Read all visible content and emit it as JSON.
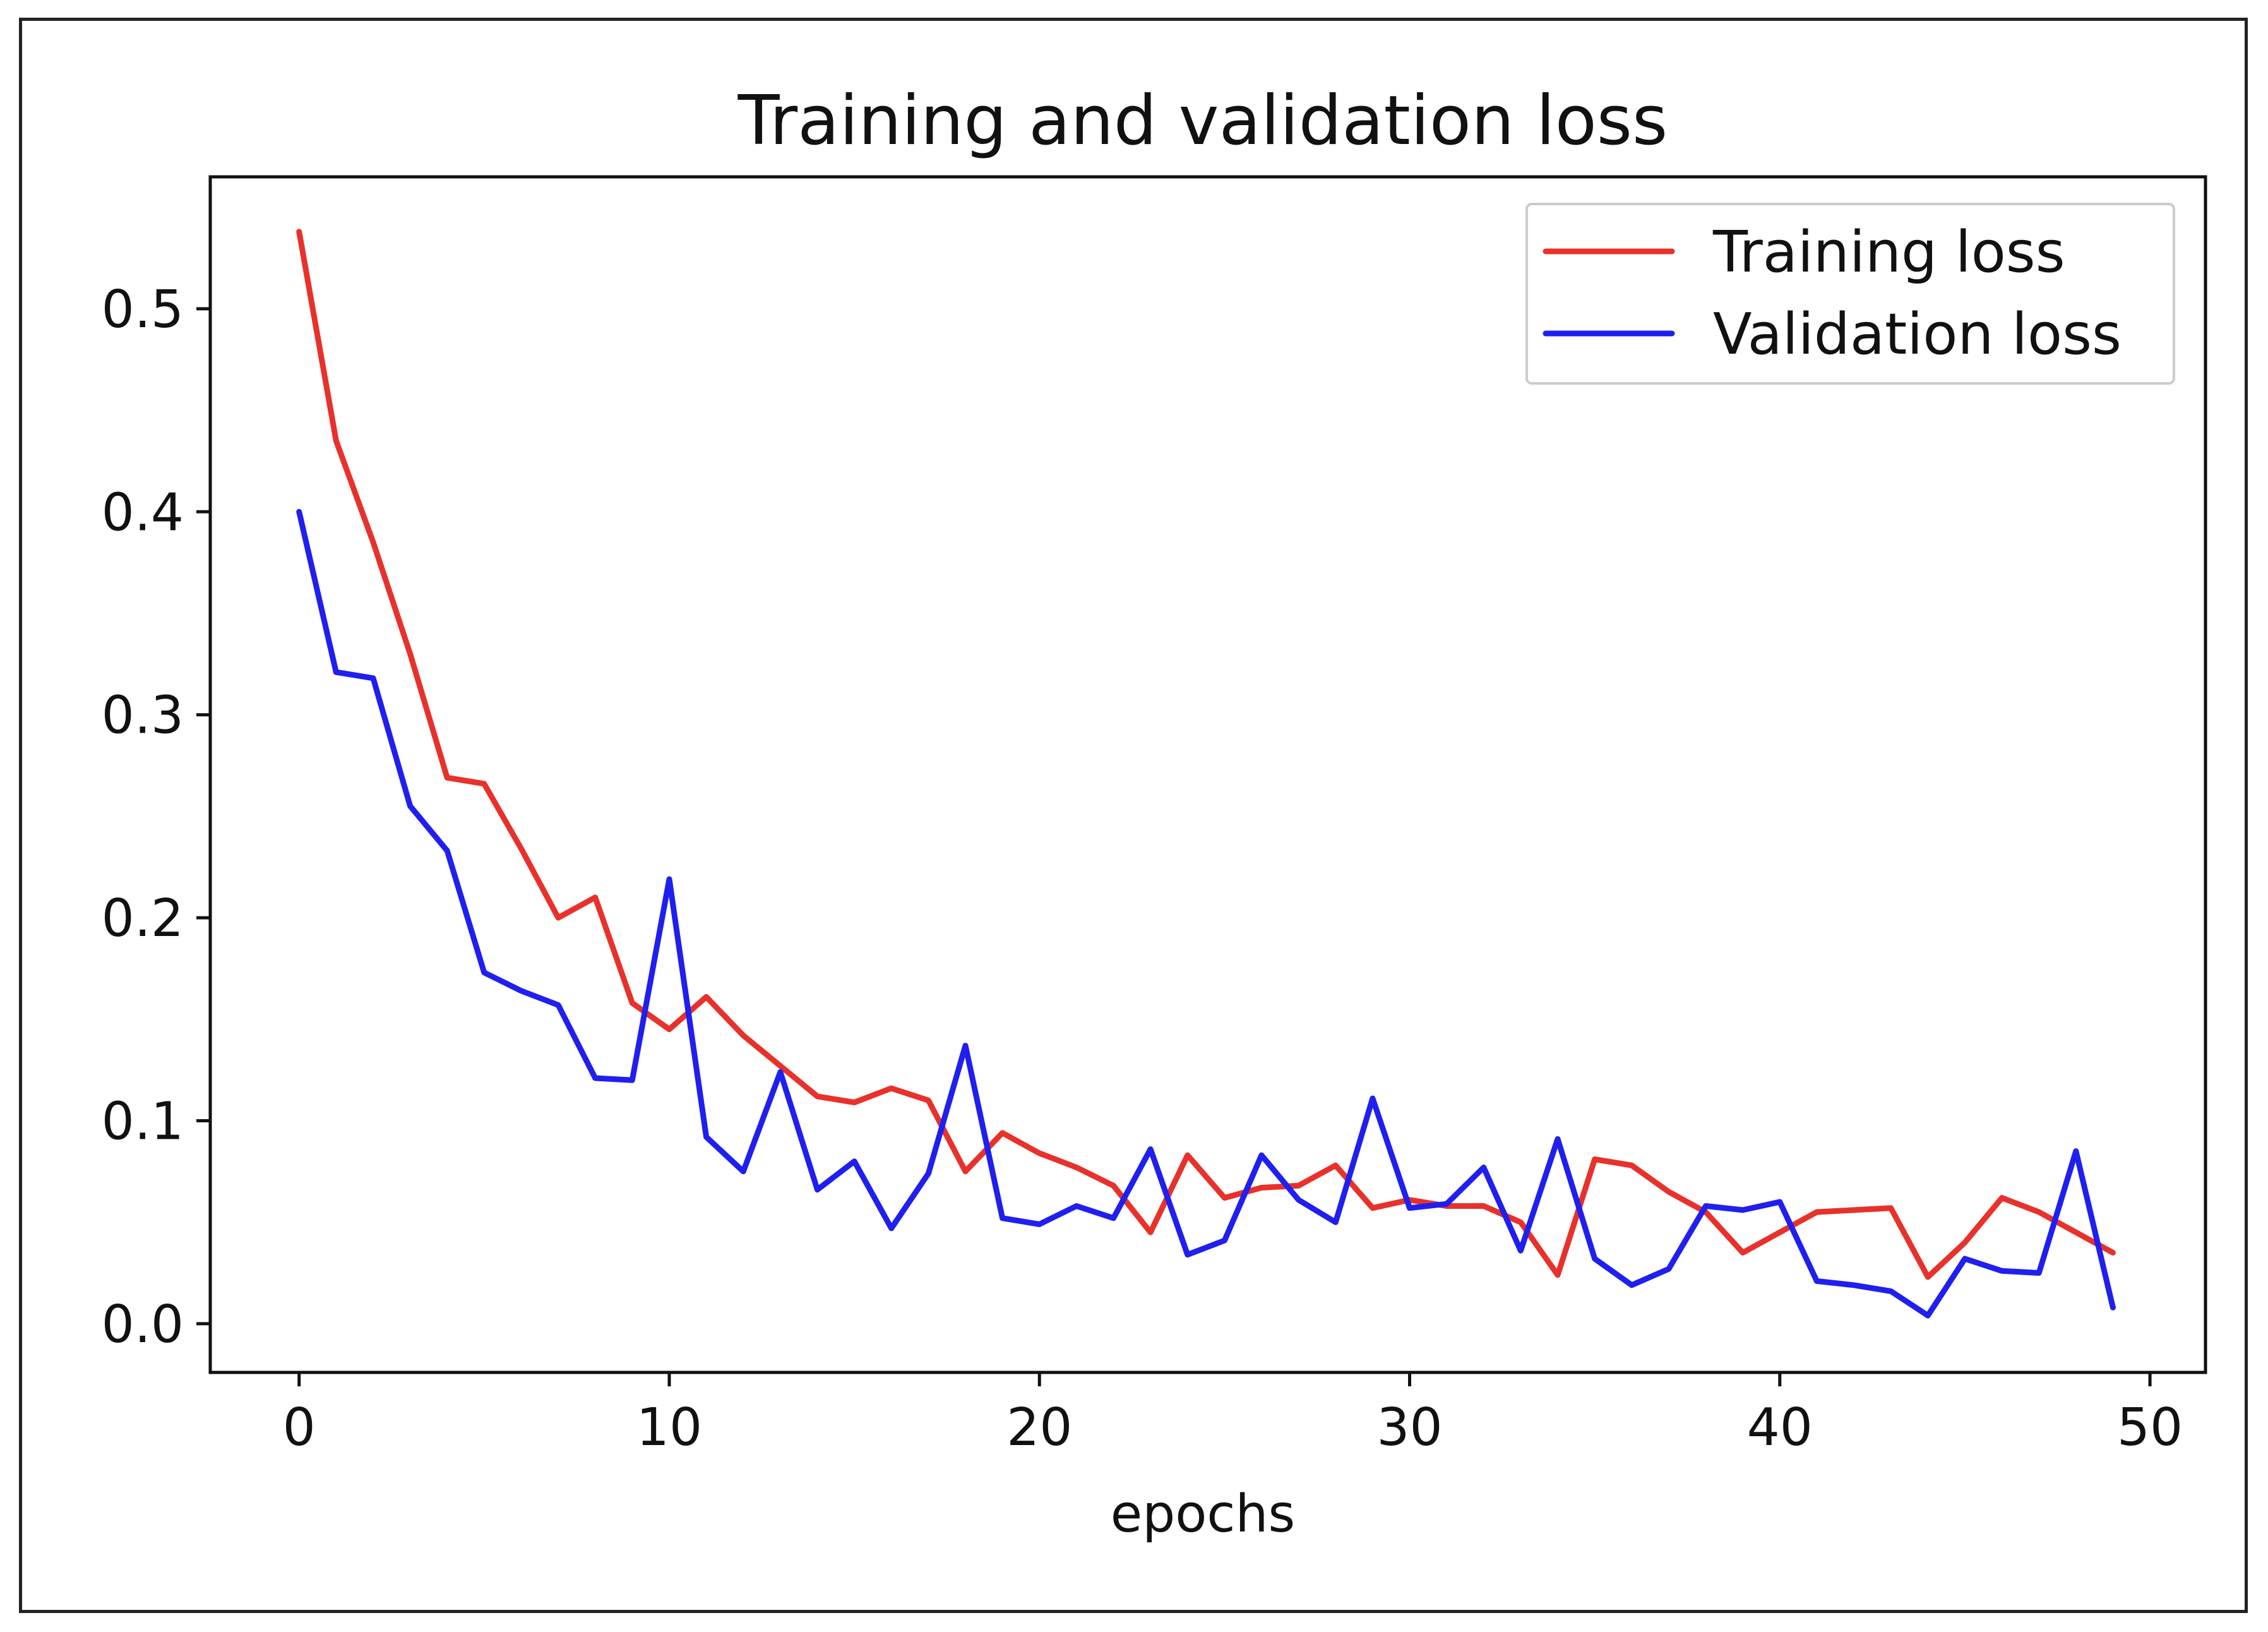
{
  "chart_data": {
    "type": "line",
    "title": "Training and validation loss",
    "xlabel": "epochs",
    "ylabel": "",
    "xlim": [
      -2.4,
      51.5
    ],
    "ylim": [
      -0.024,
      0.565
    ],
    "xticks": [
      0,
      10,
      20,
      30,
      40,
      50
    ],
    "yticks": [
      0.0,
      0.1,
      0.2,
      0.3,
      0.4,
      0.5
    ],
    "ytick_labels": [
      "0.0",
      "0.1",
      "0.2",
      "0.3",
      "0.4",
      "0.5"
    ],
    "grid": false,
    "legend_position": "top-right",
    "x": [
      0,
      1,
      2,
      3,
      4,
      5,
      6,
      7,
      8,
      9,
      10,
      11,
      12,
      13,
      14,
      15,
      16,
      17,
      18,
      19,
      20,
      21,
      22,
      23,
      24,
      25,
      26,
      27,
      28,
      29,
      30,
      31,
      32,
      33,
      34,
      35,
      36,
      37,
      38,
      39,
      40,
      41,
      42,
      43,
      44,
      45,
      46,
      47,
      48,
      49
    ],
    "series": [
      {
        "name": "Training loss",
        "color": "#e8312b",
        "values": [
          0.538,
          0.435,
          0.385,
          0.33,
          0.269,
          0.266,
          0.234,
          0.2,
          0.21,
          0.158,
          0.145,
          0.161,
          0.142,
          0.127,
          0.112,
          0.109,
          0.116,
          0.11,
          0.075,
          0.094,
          0.084,
          0.077,
          0.068,
          0.045,
          0.083,
          0.062,
          0.067,
          0.068,
          0.078,
          0.057,
          0.061,
          0.058,
          0.058,
          0.05,
          0.024,
          0.081,
          0.078,
          0.065,
          0.055,
          0.035,
          0.045,
          0.055,
          0.056,
          0.057,
          0.023,
          0.04,
          0.062,
          0.055,
          0.045,
          0.035
        ]
      },
      {
        "name": "Validation loss",
        "color": "#1f1ff0",
        "values": [
          0.4,
          0.321,
          0.318,
          0.255,
          0.233,
          0.173,
          0.164,
          0.157,
          0.121,
          0.12,
          0.219,
          0.092,
          0.075,
          0.124,
          0.066,
          0.08,
          0.047,
          0.074,
          0.137,
          0.052,
          0.049,
          0.058,
          0.052,
          0.086,
          0.034,
          0.041,
          0.083,
          0.061,
          0.05,
          0.111,
          0.057,
          0.059,
          0.077,
          0.036,
          0.091,
          0.032,
          0.019,
          0.027,
          0.058,
          0.056,
          0.06,
          0.021,
          0.019,
          0.016,
          0.004,
          0.032,
          0.026,
          0.025,
          0.085,
          0.008
        ]
      }
    ]
  }
}
